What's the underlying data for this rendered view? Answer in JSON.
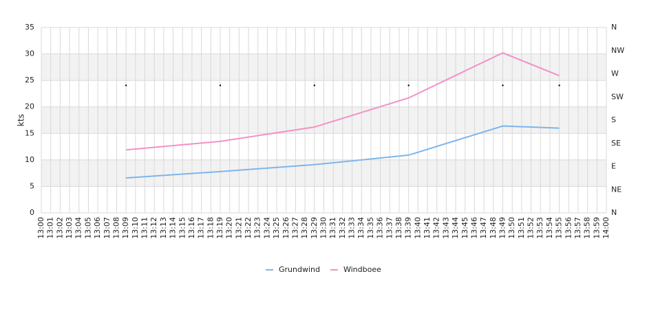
{
  "chart_data": {
    "type": "line",
    "y_label": "kts",
    "categories": [
      "13:00",
      "13:01",
      "13:02",
      "13:03",
      "13:04",
      "13:05",
      "13:06",
      "13:07",
      "13:08",
      "13:09",
      "13:10",
      "13:11",
      "13:12",
      "13:13",
      "13:14",
      "13:15",
      "13:16",
      "13:17",
      "13:18",
      "13:19",
      "13:20",
      "13:21",
      "13:22",
      "13:23",
      "13:24",
      "13:25",
      "13:26",
      "13:27",
      "13:28",
      "13:29",
      "13:30",
      "13:31",
      "13:32",
      "13:33",
      "13:34",
      "13:35",
      "13:36",
      "13:37",
      "13:38",
      "13:39",
      "13:40",
      "13:41",
      "13:42",
      "13:43",
      "13:44",
      "13:45",
      "13:46",
      "13:47",
      "13:48",
      "13:49",
      "13:50",
      "13:51",
      "13:52",
      "13:53",
      "13:54",
      "13:55",
      "13:56",
      "13:57",
      "13:58",
      "13:59",
      "14:00"
    ],
    "ylim": [
      0,
      35
    ],
    "yticks": [
      0,
      5,
      10,
      15,
      20,
      25,
      30,
      35
    ],
    "y2lim": [
      0,
      360
    ],
    "y2ticks": [
      {
        "value": 0,
        "label": "N"
      },
      {
        "value": 45,
        "label": "NE"
      },
      {
        "value": 90,
        "label": "E"
      },
      {
        "value": 135,
        "label": "SE"
      },
      {
        "value": 180,
        "label": "S"
      },
      {
        "value": 225,
        "label": "SW"
      },
      {
        "value": 270,
        "label": "W"
      },
      {
        "value": 315,
        "label": "NW"
      },
      {
        "value": 360,
        "label": "N"
      }
    ],
    "grid": true,
    "bands": true,
    "series": [
      {
        "name": "Grundwind",
        "color": "#7cb5ec",
        "x": [
          "13:09",
          "13:19",
          "13:29",
          "13:39",
          "13:49",
          "13:55"
        ],
        "values": [
          6.6,
          7.8,
          9.1,
          10.9,
          16.4,
          16.0
        ]
      },
      {
        "name": "Windboee",
        "color": "#f391c4",
        "x": [
          "13:09",
          "13:19",
          "13:29",
          "13:39",
          "13:49",
          "13:55"
        ],
        "values": [
          11.9,
          13.5,
          16.2,
          21.7,
          30.2,
          25.9
        ]
      },
      {
        "color": "#000000",
        "axis": "y2",
        "x": [
          "13:09",
          "13:19",
          "13:29",
          "13:39",
          "13:49",
          "13:55"
        ],
        "values": [
          247.5,
          247.5,
          247.5,
          247.5,
          247.5,
          247.5
        ]
      }
    ]
  }
}
